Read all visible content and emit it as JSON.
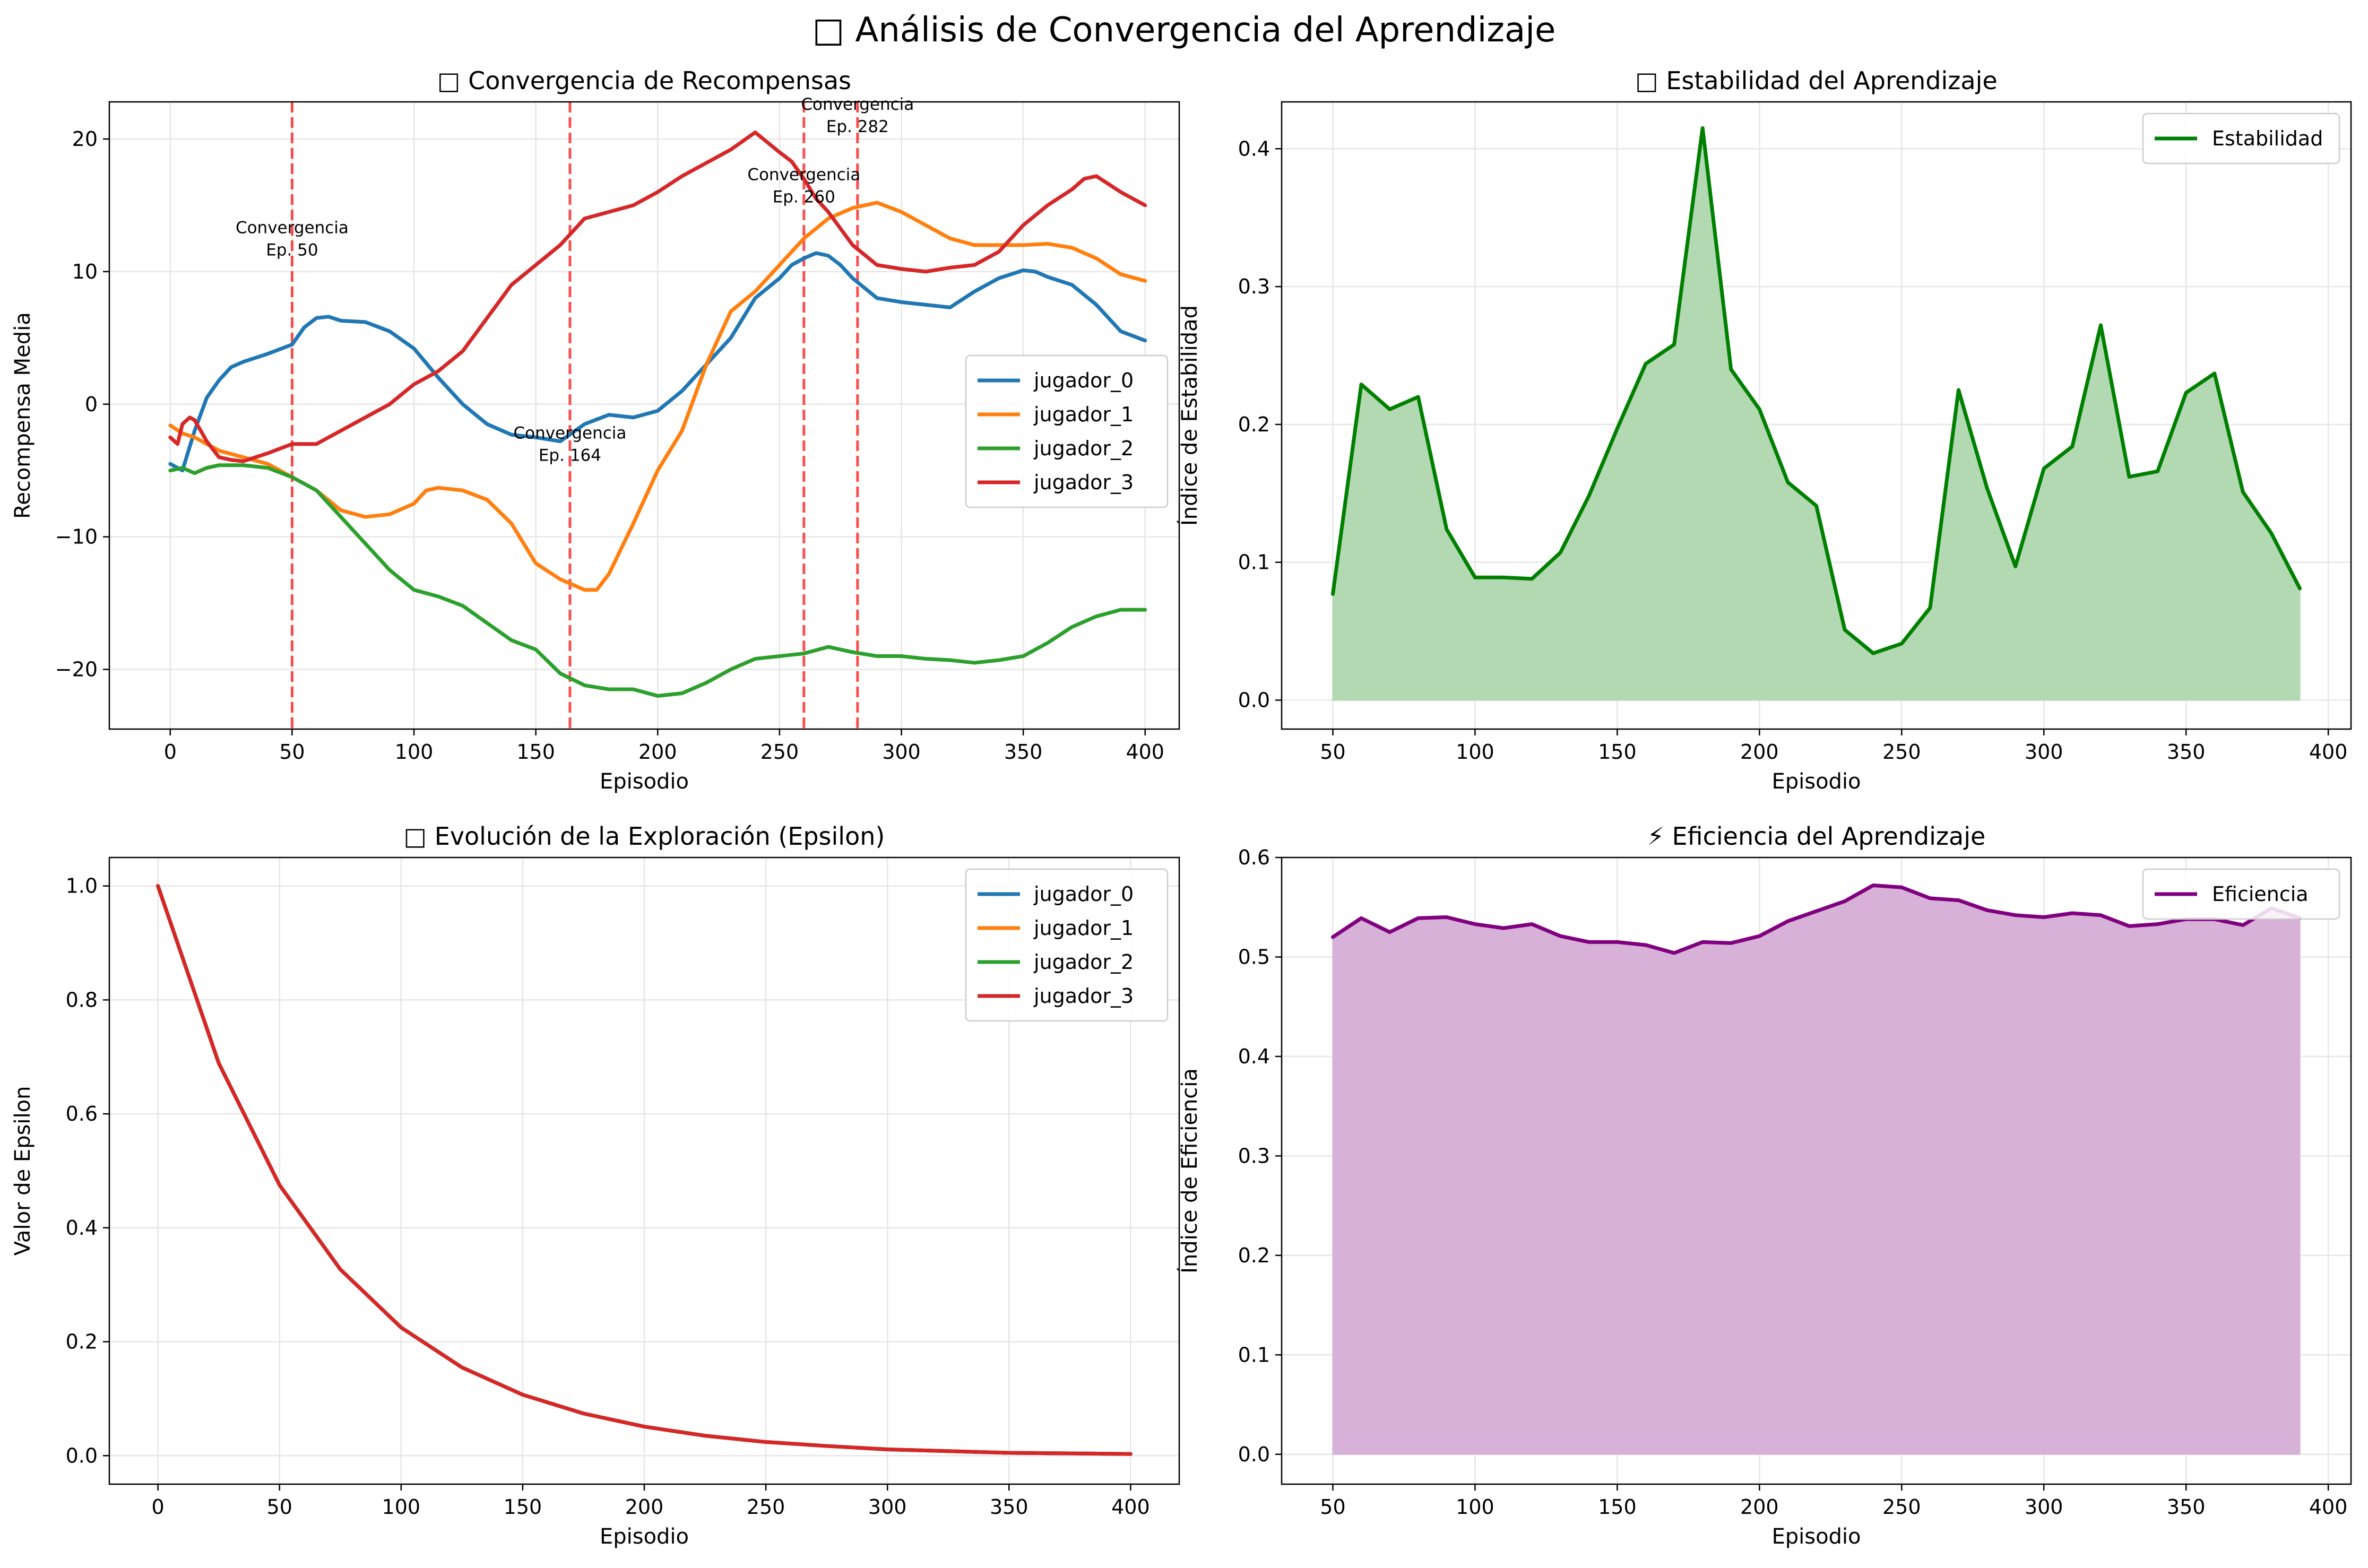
{
  "suptitle": "□ Análisis de Convergencia del Aprendizaje",
  "colors": {
    "jugador_0": "#1f77b4",
    "jugador_1": "#ff7f0e",
    "jugador_2": "#2ca02c",
    "jugador_3": "#d62728",
    "convergence_line": "#ff0000",
    "stability": "#008000",
    "stability_fill": "#b3d9b3",
    "efficiency": "#800080",
    "efficiency_fill": "#d8b1d8"
  },
  "chart_data": [
    {
      "type": "line",
      "title": "□ Convergencia de Recompensas",
      "xlabel": "Episodio",
      "ylabel": "Recompensa Media",
      "xlim": [
        -25,
        414
      ],
      "ylim": [
        -24.5,
        22.8
      ],
      "xticks": [
        0,
        50,
        100,
        150,
        200,
        250,
        300,
        350,
        400
      ],
      "yticks": [
        -20,
        -10,
        0,
        10,
        20
      ],
      "grid": true,
      "legend": "center-right",
      "series": [
        {
          "name": "jugador_0",
          "x": [
            0,
            5,
            10,
            15,
            20,
            25,
            30,
            40,
            50,
            55,
            60,
            65,
            70,
            80,
            90,
            100,
            110,
            120,
            130,
            140,
            150,
            160,
            170,
            180,
            190,
            200,
            210,
            220,
            230,
            240,
            250,
            255,
            260,
            265,
            270,
            275,
            280,
            290,
            300,
            310,
            320,
            330,
            340,
            350,
            355,
            360,
            370,
            380,
            390,
            400
          ],
          "y": [
            -4.5,
            -5,
            -2,
            0.5,
            1.8,
            2.8,
            3.2,
            3.8,
            4.5,
            5.8,
            6.5,
            6.6,
            6.3,
            6.2,
            5.5,
            4.2,
            2,
            0,
            -1.5,
            -2.3,
            -2.5,
            -2.8,
            -1.5,
            -0.8,
            -1,
            -0.5,
            1,
            3,
            5,
            8,
            9.5,
            10.5,
            11,
            11.4,
            11.2,
            10.5,
            9.5,
            8,
            7.7,
            7.5,
            7.3,
            8.5,
            9.5,
            10.1,
            10,
            9.6,
            9,
            7.5,
            5.5,
            4.8
          ]
        },
        {
          "name": "jugador_1",
          "x": [
            0,
            5,
            10,
            20,
            30,
            40,
            50,
            60,
            70,
            80,
            90,
            100,
            105,
            110,
            120,
            130,
            140,
            150,
            160,
            170,
            175,
            180,
            190,
            200,
            210,
            220,
            230,
            240,
            250,
            260,
            270,
            280,
            290,
            300,
            310,
            320,
            330,
            340,
            350,
            360,
            370,
            380,
            390,
            400
          ],
          "y": [
            -1.6,
            -2.2,
            -2.5,
            -3.5,
            -4,
            -4.5,
            -5.5,
            -6.5,
            -8,
            -8.5,
            -8.3,
            -7.5,
            -6.5,
            -6.3,
            -6.5,
            -7.2,
            -9,
            -12,
            -13.2,
            -14,
            -14,
            -12.8,
            -9,
            -5,
            -2,
            3,
            7,
            8.5,
            10.5,
            12.5,
            14,
            14.8,
            15.2,
            14.5,
            13.5,
            12.5,
            12,
            12,
            12,
            12.1,
            11.8,
            11,
            9.8,
            9.3
          ]
        },
        {
          "name": "jugador_2",
          "x": [
            0,
            5,
            10,
            15,
            20,
            30,
            40,
            50,
            60,
            70,
            80,
            90,
            100,
            110,
            120,
            130,
            140,
            150,
            160,
            170,
            180,
            190,
            200,
            210,
            220,
            230,
            240,
            250,
            260,
            270,
            280,
            290,
            300,
            310,
            320,
            330,
            340,
            350,
            360,
            370,
            380,
            390,
            400
          ],
          "y": [
            -5,
            -4.8,
            -5.2,
            -4.8,
            -4.6,
            -4.6,
            -4.8,
            -5.5,
            -6.5,
            -8.5,
            -10.5,
            -12.5,
            -14,
            -14.5,
            -15.2,
            -16.5,
            -17.8,
            -18.5,
            -20.3,
            -21.2,
            -21.5,
            -21.5,
            -22,
            -21.8,
            -21,
            -20,
            -19.2,
            -19,
            -18.8,
            -18.3,
            -18.7,
            -19,
            -19,
            -19.2,
            -19.3,
            -19.5,
            -19.3,
            -19,
            -18,
            -16.8,
            -16,
            -15.5,
            -15.5
          ]
        },
        {
          "name": "jugador_3",
          "x": [
            0,
            3,
            5,
            8,
            10,
            15,
            20,
            25,
            30,
            40,
            50,
            60,
            70,
            80,
            90,
            100,
            110,
            120,
            130,
            140,
            150,
            160,
            170,
            180,
            190,
            200,
            210,
            220,
            230,
            240,
            250,
            255,
            260,
            265,
            270,
            280,
            290,
            300,
            310,
            320,
            330,
            340,
            350,
            360,
            370,
            375,
            380,
            390,
            400
          ],
          "y": [
            -2.5,
            -3,
            -1.5,
            -1,
            -1.2,
            -2.8,
            -4,
            -4.2,
            -4.3,
            -3.7,
            -3,
            -3,
            -2,
            -1,
            0,
            1.5,
            2.5,
            4,
            6.5,
            9,
            10.5,
            12,
            14,
            14.5,
            15,
            16,
            17.2,
            18.2,
            19.2,
            20.5,
            19,
            18.3,
            17,
            15.5,
            14.5,
            12,
            10.5,
            10.2,
            10,
            10.3,
            10.5,
            11.5,
            13.5,
            15,
            16.2,
            17,
            17.2,
            16,
            15
          ]
        }
      ],
      "convergence_markers": [
        {
          "x": 50,
          "label": "Convergencia\nEp. 50",
          "label_y": 12.5
        },
        {
          "x": 164,
          "label": "Convergencia\nEp. 164",
          "label_y": -3
        },
        {
          "x": 260,
          "label": "Convergencia\nEp. 260",
          "label_y": 16.5
        },
        {
          "x": 282,
          "label": "Convergencia\nEp. 282",
          "label_y": 21.8
        }
      ]
    },
    {
      "type": "area",
      "title": "□ Estabilidad del Aprendizaje",
      "xlabel": "Episodio",
      "ylabel": "Índice de Estabilidad",
      "xlim": [
        32,
        408
      ],
      "ylim": [
        -0.021,
        0.434
      ],
      "xticks": [
        50,
        100,
        150,
        200,
        250,
        300,
        350,
        400
      ],
      "yticks": [
        0.0,
        0.1,
        0.2,
        0.3,
        0.4
      ],
      "grid": true,
      "legend": "top-right",
      "series": [
        {
          "name": "Estabilidad",
          "x": [
            50,
            60,
            70,
            80,
            90,
            100,
            110,
            120,
            130,
            140,
            150,
            160,
            170,
            180,
            190,
            200,
            210,
            220,
            230,
            240,
            250,
            260,
            270,
            280,
            290,
            300,
            310,
            320,
            330,
            340,
            350,
            360,
            370,
            380,
            390
          ],
          "y": [
            0.077,
            0.229,
            0.211,
            0.22,
            0.124,
            0.089,
            0.089,
            0.088,
            0.107,
            0.148,
            0.197,
            0.244,
            0.258,
            0.415,
            0.24,
            0.211,
            0.158,
            0.141,
            0.051,
            0.034,
            0.041,
            0.067,
            0.225,
            0.154,
            0.097,
            0.168,
            0.184,
            0.272,
            0.162,
            0.166,
            0.223,
            0.237,
            0.151,
            0.121,
            0.081
          ]
        }
      ]
    },
    {
      "type": "line",
      "title": "□ Evolución de la Exploración (Epsilon)",
      "xlabel": "Episodio",
      "ylabel": "Valor de Epsilon",
      "xlim": [
        -20,
        420
      ],
      "ylim": [
        -0.05,
        1.05
      ],
      "xticks": [
        0,
        50,
        100,
        150,
        200,
        250,
        300,
        350,
        400
      ],
      "yticks": [
        0.0,
        0.2,
        0.4,
        0.6,
        0.8,
        1.0
      ],
      "grid": true,
      "legend": "top-right",
      "series": [
        {
          "name": "jugador_0",
          "x": [
            0,
            25,
            50,
            75,
            100,
            125,
            150,
            175,
            200,
            225,
            250,
            275,
            300,
            325,
            350,
            375,
            400
          ],
          "y": [
            1.0,
            0.689,
            0.475,
            0.327,
            0.225,
            0.155,
            0.107,
            0.074,
            0.051,
            0.035,
            0.024,
            0.017,
            0.011,
            0.008,
            0.005,
            0.004,
            0.003
          ]
        },
        {
          "name": "jugador_1",
          "x": [
            0,
            25,
            50,
            75,
            100,
            125,
            150,
            175,
            200,
            225,
            250,
            275,
            300,
            325,
            350,
            375,
            400
          ],
          "y": [
            1.0,
            0.689,
            0.475,
            0.327,
            0.225,
            0.155,
            0.107,
            0.074,
            0.051,
            0.035,
            0.024,
            0.017,
            0.011,
            0.008,
            0.005,
            0.004,
            0.003
          ]
        },
        {
          "name": "jugador_2",
          "x": [
            0,
            25,
            50,
            75,
            100,
            125,
            150,
            175,
            200,
            225,
            250,
            275,
            300,
            325,
            350,
            375,
            400
          ],
          "y": [
            1.0,
            0.689,
            0.475,
            0.327,
            0.225,
            0.155,
            0.107,
            0.074,
            0.051,
            0.035,
            0.024,
            0.017,
            0.011,
            0.008,
            0.005,
            0.004,
            0.003
          ]
        },
        {
          "name": "jugador_3",
          "x": [
            0,
            25,
            50,
            75,
            100,
            125,
            150,
            175,
            200,
            225,
            250,
            275,
            300,
            325,
            350,
            375,
            400
          ],
          "y": [
            1.0,
            0.689,
            0.475,
            0.327,
            0.225,
            0.155,
            0.107,
            0.074,
            0.051,
            0.035,
            0.024,
            0.017,
            0.011,
            0.008,
            0.005,
            0.004,
            0.003
          ]
        }
      ]
    },
    {
      "type": "area",
      "title": "⚡ Eficiencia del Aprendizaje",
      "xlabel": "Episodio",
      "ylabel": "Índice de Eficiencia",
      "xlim": [
        32,
        408
      ],
      "ylim": [
        -0.03,
        0.6
      ],
      "xticks": [
        50,
        100,
        150,
        200,
        250,
        300,
        350,
        400
      ],
      "yticks": [
        0.0,
        0.1,
        0.2,
        0.3,
        0.4,
        0.5,
        0.6
      ],
      "grid": true,
      "legend": "top-right",
      "series": [
        {
          "name": "Eficiencia",
          "x": [
            50,
            60,
            70,
            80,
            90,
            100,
            110,
            120,
            130,
            140,
            150,
            160,
            170,
            180,
            190,
            200,
            210,
            220,
            230,
            240,
            250,
            260,
            270,
            280,
            290,
            300,
            310,
            320,
            330,
            340,
            350,
            360,
            370,
            380,
            390
          ],
          "y": [
            0.52,
            0.539,
            0.525,
            0.539,
            0.54,
            0.533,
            0.529,
            0.533,
            0.521,
            0.515,
            0.515,
            0.512,
            0.504,
            0.515,
            0.514,
            0.521,
            0.536,
            0.546,
            0.556,
            0.572,
            0.57,
            0.559,
            0.557,
            0.547,
            0.542,
            0.54,
            0.544,
            0.542,
            0.531,
            0.533,
            0.538,
            0.538,
            0.532,
            0.549,
            0.539
          ]
        }
      ]
    }
  ]
}
